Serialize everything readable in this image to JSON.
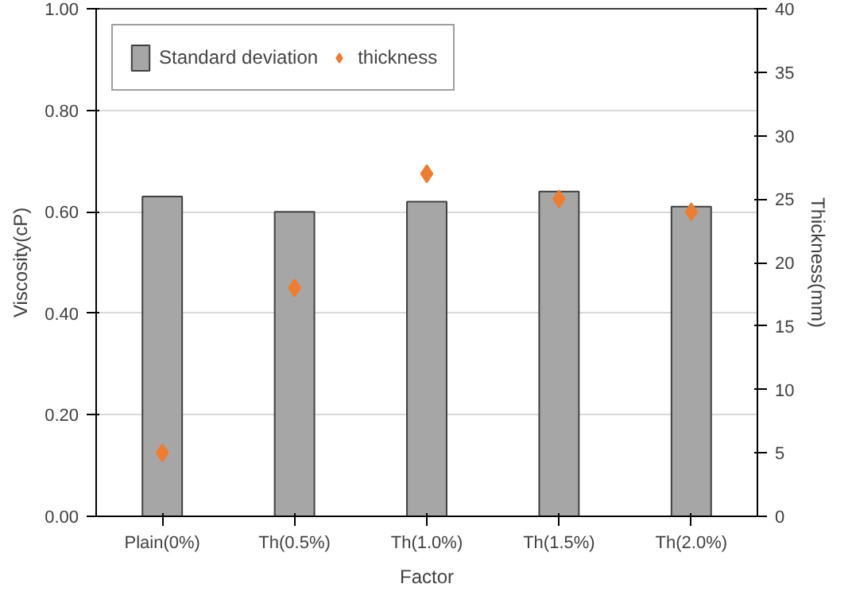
{
  "chart_data": {
    "type": "bar",
    "xlabel": "Factor",
    "ylabel": "Viscosity(cP)",
    "y2label": "Thickness(mm)",
    "categories": [
      "Plain(0%)",
      "Th(0.5%)",
      "Th(1.0%)",
      "Th(1.5%)",
      "Th(2.0%)"
    ],
    "series": [
      {
        "name": "Standard deviation",
        "color": "#a6a6a6",
        "values": [
          0.63,
          0.6,
          0.62,
          0.64,
          0.61
        ]
      },
      {
        "name": "thickness",
        "type": "scatter",
        "axis": "y2",
        "color": "#ed7d31",
        "values": [
          5,
          18,
          27,
          25,
          24
        ]
      }
    ],
    "ylim": [
      0,
      1
    ],
    "yticks": [
      {
        "value": 0,
        "label": "0.00"
      },
      {
        "value": 0.2,
        "label": "0.20"
      },
      {
        "value": 0.4,
        "label": "0.40"
      },
      {
        "value": 0.6,
        "label": "0.60"
      },
      {
        "value": 0.8,
        "label": "0.80"
      },
      {
        "value": 1,
        "label": "1.00"
      }
    ],
    "y2lim": [
      0,
      40
    ],
    "y2ticks": [
      0,
      5,
      10,
      15,
      20,
      25,
      30,
      35,
      40
    ],
    "grid": "y",
    "legend": "top left",
    "marker": "diamond"
  }
}
